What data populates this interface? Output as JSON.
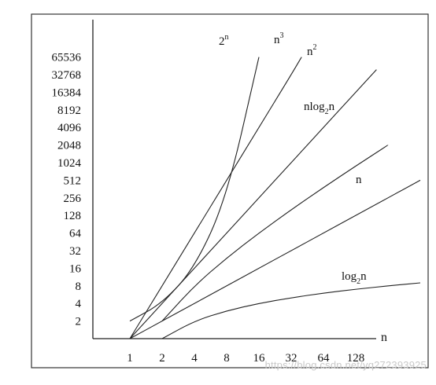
{
  "chart_data": {
    "type": "line",
    "title": "",
    "xlabel": "n",
    "ylabel": "",
    "x_ticks": [
      "1",
      "2",
      "4",
      "8",
      "16",
      "32",
      "64",
      "128"
    ],
    "y_ticks": [
      "2",
      "4",
      "8",
      "16",
      "32",
      "64",
      "128",
      "256",
      "512",
      "1024",
      "2048",
      "4096",
      "8192",
      "16384",
      "32768",
      "65536"
    ],
    "x_scale": "log2",
    "y_scale": "log2",
    "grid": false,
    "legend": "none",
    "series": [
      {
        "name": "2n",
        "x": [
          1,
          2,
          4,
          8,
          16
        ],
        "y": [
          2,
          4,
          16,
          256,
          65536
        ]
      },
      {
        "name": "n3",
        "x": [
          1,
          2,
          4,
          8,
          16,
          32,
          40
        ],
        "y": [
          1,
          8,
          64,
          512,
          4096,
          32768,
          65536
        ]
      },
      {
        "name": "n2",
        "x": [
          1,
          2,
          4,
          8,
          16,
          32,
          64,
          128,
          200
        ],
        "y": [
          1,
          4,
          16,
          64,
          256,
          1024,
          4096,
          16384,
          40000
        ]
      },
      {
        "name": "nlog2n",
        "x": [
          2,
          4,
          8,
          16,
          32,
          64,
          128,
          256
        ],
        "y": [
          2,
          8,
          24,
          64,
          160,
          384,
          896,
          2048
        ]
      },
      {
        "name": "n",
        "x": [
          1,
          2,
          4,
          8,
          16,
          32,
          64,
          128,
          512
        ],
        "y": [
          1,
          2,
          4,
          8,
          16,
          32,
          64,
          128,
          512
        ]
      },
      {
        "name": "log2n",
        "x": [
          2,
          4,
          8,
          16,
          32,
          64,
          128,
          256,
          512
        ],
        "y": [
          1,
          2,
          3,
          4,
          5,
          6,
          7,
          8,
          9
        ]
      }
    ],
    "series_labels": [
      {
        "base": "2",
        "sup": "n",
        "sub": "",
        "tail": ""
      },
      {
        "base": "n",
        "sup": "3",
        "sub": "",
        "tail": ""
      },
      {
        "base": "n",
        "sup": "2",
        "sub": "",
        "tail": ""
      },
      {
        "base": "nlog",
        "sup": "",
        "sub": "2",
        "tail": "n"
      },
      {
        "base": "n",
        "sup": "",
        "sub": "",
        "tail": ""
      },
      {
        "base": "log",
        "sup": "",
        "sub": "2",
        "tail": "n"
      }
    ],
    "colors": {
      "line": "#222222",
      "frame": "#333333",
      "text": "#111111"
    }
  },
  "watermark": "https://blog.csdn.net/yq272393925"
}
